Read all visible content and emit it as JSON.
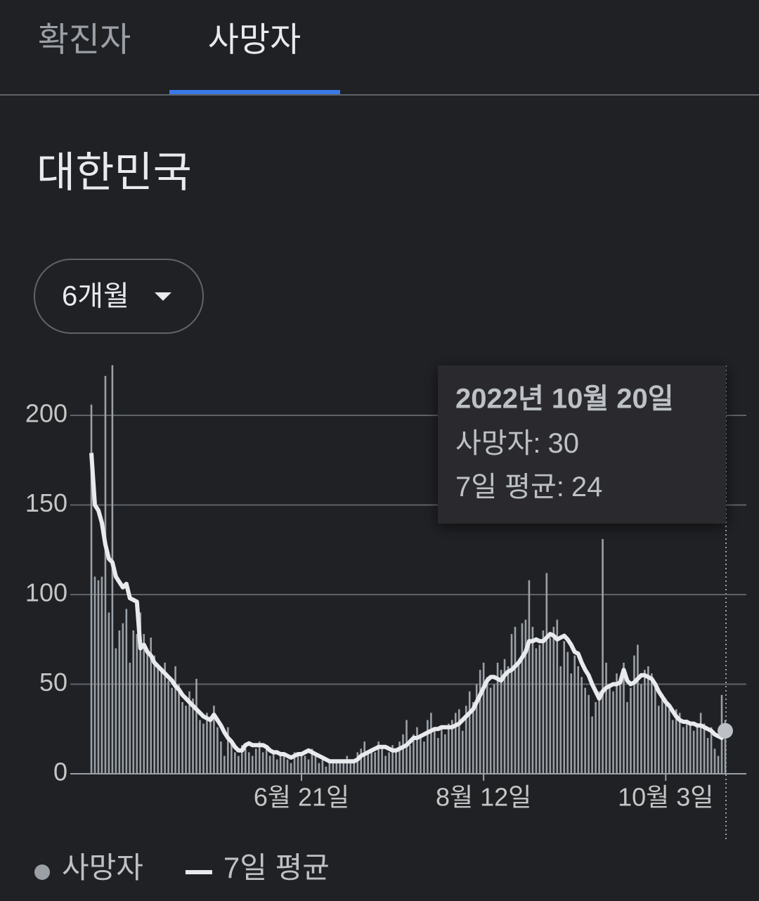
{
  "tabs": [
    "확진자",
    "사망자"
  ],
  "selected_tab": 1,
  "region": "대한민국",
  "range_selector": "6개월",
  "chart_data": {
    "type": "bar_line",
    "categories": [
      null,
      null,
      null,
      null,
      null,
      null,
      null,
      null,
      null,
      null,
      null,
      null,
      null,
      null,
      null,
      null,
      null,
      null,
      null,
      null,
      null,
      null,
      null,
      null,
      null,
      null,
      null,
      null,
      null,
      null,
      null,
      null,
      null,
      null,
      null,
      null,
      null,
      null,
      null,
      null,
      null,
      null,
      null,
      null,
      null,
      null,
      null,
      null,
      null,
      null,
      null,
      null,
      null,
      null,
      null,
      null,
      null,
      null,
      null,
      null,
      "6월 21일",
      null,
      null,
      null,
      null,
      null,
      null,
      null,
      null,
      null,
      null,
      null,
      null,
      null,
      null,
      null,
      null,
      null,
      null,
      null,
      null,
      null,
      null,
      null,
      null,
      null,
      null,
      null,
      null,
      null,
      null,
      null,
      null,
      null,
      null,
      null,
      null,
      null,
      null,
      null,
      null,
      null,
      null,
      null,
      null,
      null,
      null,
      null,
      null,
      null,
      null,
      null,
      "8월 12일",
      null,
      null,
      null,
      null,
      null,
      null,
      null,
      null,
      null,
      null,
      null,
      null,
      null,
      null,
      null,
      null,
      null,
      null,
      null,
      null,
      null,
      null,
      null,
      null,
      null,
      null,
      null,
      null,
      null,
      null,
      null,
      null,
      null,
      null,
      null,
      null,
      null,
      null,
      null,
      null,
      null,
      null,
      null,
      null,
      null,
      null,
      null,
      null,
      null,
      null,
      null,
      "10월 3일",
      null,
      null,
      null,
      null,
      null,
      null,
      null,
      null,
      null,
      null,
      null,
      null,
      null,
      null,
      null,
      null,
      null
    ],
    "series": [
      {
        "name": "사망자",
        "kind": "bar",
        "color": "#9aa0a6",
        "values": [
          206,
          110,
          108,
          110,
          222,
          90,
          228,
          70,
          80,
          84,
          92,
          62,
          80,
          78,
          90,
          78,
          68,
          76,
          66,
          60,
          58,
          62,
          52,
          48,
          60,
          50,
          40,
          38,
          46,
          42,
          53,
          30,
          28,
          34,
          32,
          38,
          26,
          18,
          10,
          26,
          18,
          12,
          10,
          16,
          14,
          12,
          10,
          14,
          18,
          12,
          14,
          10,
          12,
          8,
          10,
          12,
          8,
          6,
          12,
          10,
          12,
          10,
          8,
          14,
          10,
          6,
          8,
          4,
          6,
          8,
          6,
          8,
          8,
          10,
          6,
          8,
          12,
          14,
          18,
          12,
          14,
          12,
          18,
          16,
          10,
          12,
          16,
          14,
          18,
          22,
          30,
          16,
          22,
          26,
          22,
          18,
          30,
          34,
          26,
          20,
          26,
          22,
          28,
          30,
          34,
          36,
          24,
          38,
          46,
          40,
          50,
          58,
          62,
          54,
          48,
          50,
          62,
          58,
          64,
          60,
          78,
          82,
          62,
          84,
          86,
          108,
          82,
          70,
          72,
          80,
          112,
          76,
          82,
          86,
          60,
          74,
          68,
          56,
          66,
          60,
          54,
          48,
          44,
          32,
          40,
          46,
          131,
          62,
          50,
          46,
          56,
          52,
          62,
          40,
          48,
          66,
          72,
          50,
          58,
          60,
          56,
          48,
          38,
          44,
          42,
          36,
          30,
          36,
          34,
          26,
          30,
          28,
          24,
          26,
          34,
          28,
          20,
          26,
          14,
          10,
          44,
          30
        ]
      },
      {
        "name": "7일 평균",
        "kind": "line",
        "color": "#e8eaed",
        "values": [
          179,
          150,
          147,
          140,
          128,
          120,
          118,
          110,
          107,
          104,
          106,
          98,
          97,
          96,
          70,
          72,
          68,
          66,
          62,
          60,
          58,
          56,
          54,
          52,
          49,
          47,
          44,
          42,
          40,
          38,
          36,
          34,
          32,
          31,
          30,
          33,
          30,
          27,
          23,
          20,
          18,
          15,
          13,
          13,
          16,
          17,
          16,
          16,
          16,
          16,
          15,
          13,
          12,
          12,
          11,
          11,
          10,
          9,
          10,
          11,
          11,
          12,
          13,
          12,
          11,
          10,
          9,
          8,
          7,
          7,
          7,
          7,
          7,
          7,
          7,
          7,
          8,
          10,
          11,
          12,
          13,
          14,
          15,
          15,
          15,
          14,
          13,
          13,
          14,
          15,
          16,
          18,
          20,
          20,
          21,
          22,
          23,
          24,
          25,
          25,
          26,
          26,
          26,
          26,
          27,
          28,
          30,
          32,
          34,
          36,
          40,
          44,
          48,
          52,
          54,
          54,
          53,
          52,
          55,
          57,
          58,
          60,
          62,
          65,
          68,
          74,
          74,
          75,
          74,
          74,
          76,
          78,
          77,
          75,
          76,
          77,
          75,
          72,
          68,
          67,
          62,
          58,
          55,
          50,
          46,
          42,
          46,
          48,
          49,
          50,
          50,
          51,
          58,
          52,
          50,
          51,
          53,
          55,
          55,
          54,
          53,
          50,
          46,
          43,
          40,
          38,
          35,
          32,
          30,
          29,
          29,
          28,
          28,
          27,
          27,
          26,
          25,
          24,
          22,
          21,
          20,
          24
        ]
      }
    ],
    "ylim": [
      0,
      230
    ],
    "yticks": [
      0,
      50,
      100,
      150,
      200
    ],
    "grid": true,
    "tooltip": {
      "title": "2022년 10월 20일",
      "separator": ":",
      "index": 181
    }
  }
}
